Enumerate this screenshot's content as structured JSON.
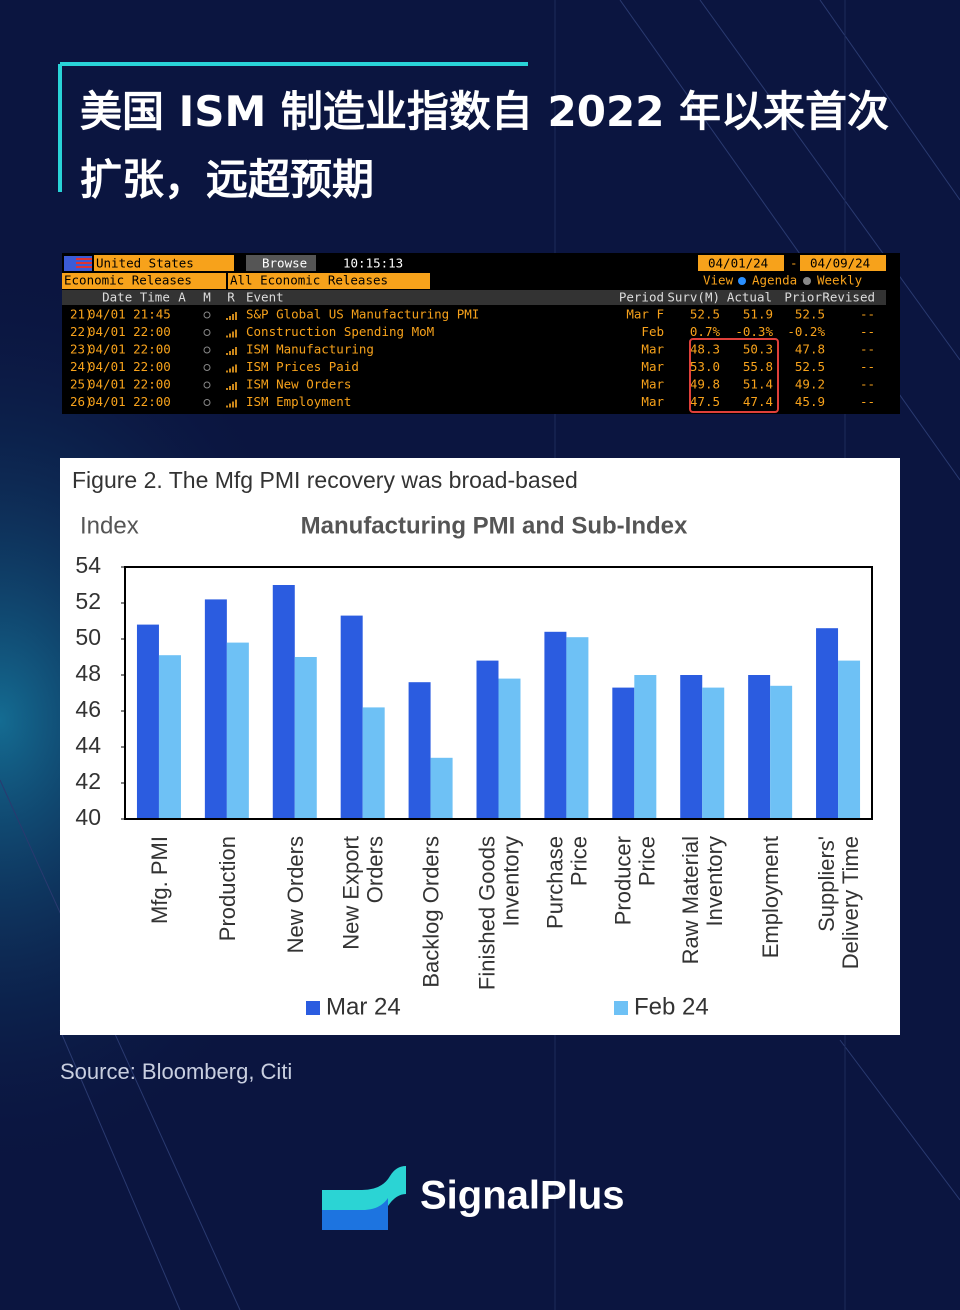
{
  "header": {
    "title": "美国 ISM 制造业指数自 2022 年以来首次扩张，远超预期"
  },
  "terminal": {
    "country": "United States",
    "browse": "Browse",
    "time": "10:15:13",
    "start_date": "04/01/24",
    "separator": "-",
    "end_date": "04/09/24",
    "category": "Economic Releases",
    "filter": "All Economic Releases",
    "view": "View",
    "agenda": "Agenda",
    "weekly": "Weekly",
    "columns": [
      "Date Time",
      "A",
      "M",
      "R",
      "Event",
      "Period",
      "Surv(M)",
      "Actual",
      "Prior",
      "Revised"
    ],
    "rows": [
      [
        "21)",
        "04/01 21:45",
        "S&P Global US Manufacturing PMI",
        "Mar F",
        "52.5",
        "51.9",
        "52.5",
        "--"
      ],
      [
        "22)",
        "04/01 22:00",
        "Construction Spending MoM",
        "Feb",
        "0.7%",
        "-0.3%",
        "-0.2%",
        "--"
      ],
      [
        "23)",
        "04/01 22:00",
        "ISM Manufacturing",
        "Mar",
        "48.3",
        "50.3",
        "47.8",
        "--"
      ],
      [
        "24)",
        "04/01 22:00",
        "ISM Prices Paid",
        "Mar",
        "53.0",
        "55.8",
        "52.5",
        "--"
      ],
      [
        "25)",
        "04/01 22:00",
        "ISM New Orders",
        "Mar",
        "49.8",
        "51.4",
        "49.2",
        "--"
      ],
      [
        "26)",
        "04/01 22:00",
        "ISM Employment",
        "Mar",
        "47.5",
        "47.4",
        "45.9",
        "--"
      ]
    ]
  },
  "chart_data": {
    "type": "bar",
    "figure_title": "Figure 2. The Mfg PMI recovery was broad-based",
    "title": "Manufacturing PMI and Sub-Index",
    "y_label": "Index",
    "categories": [
      "Mfg. PMI",
      "Production",
      "New Orders",
      "New Export\nOrders",
      "Backlog Orders",
      "Finished Goods\nInventory",
      "Purchase\nPrice",
      "Producer\nPrice",
      "Raw Material\nInventory",
      "Employment",
      "Suppliers'\nDelivery Time"
    ],
    "series": [
      {
        "name": "Mar 24",
        "color": "#2b5ce0",
        "values": [
          50.8,
          52.2,
          53.0,
          51.3,
          47.6,
          48.8,
          50.4,
          47.3,
          48.0,
          48.0,
          50.6
        ]
      },
      {
        "name": "Feb 24",
        "color": "#6ec1f5",
        "values": [
          49.1,
          49.8,
          49.0,
          46.2,
          43.4,
          47.8,
          50.1,
          48.0,
          47.3,
          47.4,
          48.8
        ]
      }
    ],
    "ylim": [
      40,
      54
    ],
    "yticks": [
      40,
      42,
      44,
      46,
      48,
      50,
      52,
      54
    ],
    "grid": false
  },
  "source": "Source: Bloomberg, Citi",
  "brand": "SignalPlus"
}
